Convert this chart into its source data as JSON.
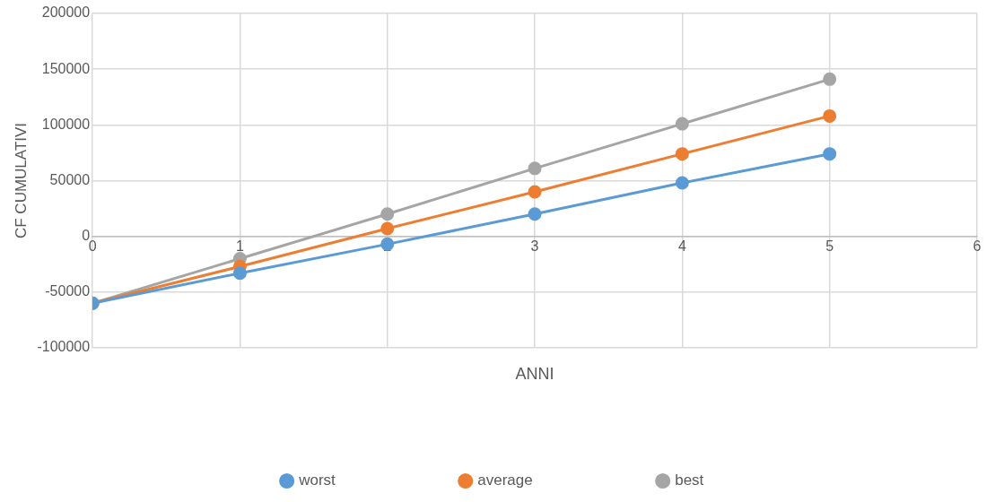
{
  "chart_data": {
    "type": "line",
    "xlabel": "ANNI",
    "ylabel": "CF CUMULATIVI",
    "x": [
      0,
      1,
      2,
      3,
      4,
      5
    ],
    "series": [
      {
        "name": "worst",
        "color": "#5b9bd5",
        "values": [
          -60000,
          -33000,
          -7000,
          20000,
          48000,
          74000
        ]
      },
      {
        "name": "average",
        "color": "#ed7d31",
        "values": [
          -60000,
          -27000,
          7000,
          40000,
          74000,
          108000
        ]
      },
      {
        "name": "best",
        "color": "#a5a5a5",
        "values": [
          -60000,
          -20000,
          20000,
          61000,
          101000,
          141000
        ]
      }
    ],
    "xlim": [
      0,
      6
    ],
    "xticks": [
      0,
      1,
      2,
      3,
      4,
      5,
      6
    ],
    "ylim": [
      -100000,
      200000
    ],
    "yticks": [
      -100000,
      -50000,
      0,
      50000,
      100000,
      150000,
      200000
    ],
    "grid": true,
    "legend": "bottom",
    "marker": "circle",
    "line_style": "solid"
  }
}
